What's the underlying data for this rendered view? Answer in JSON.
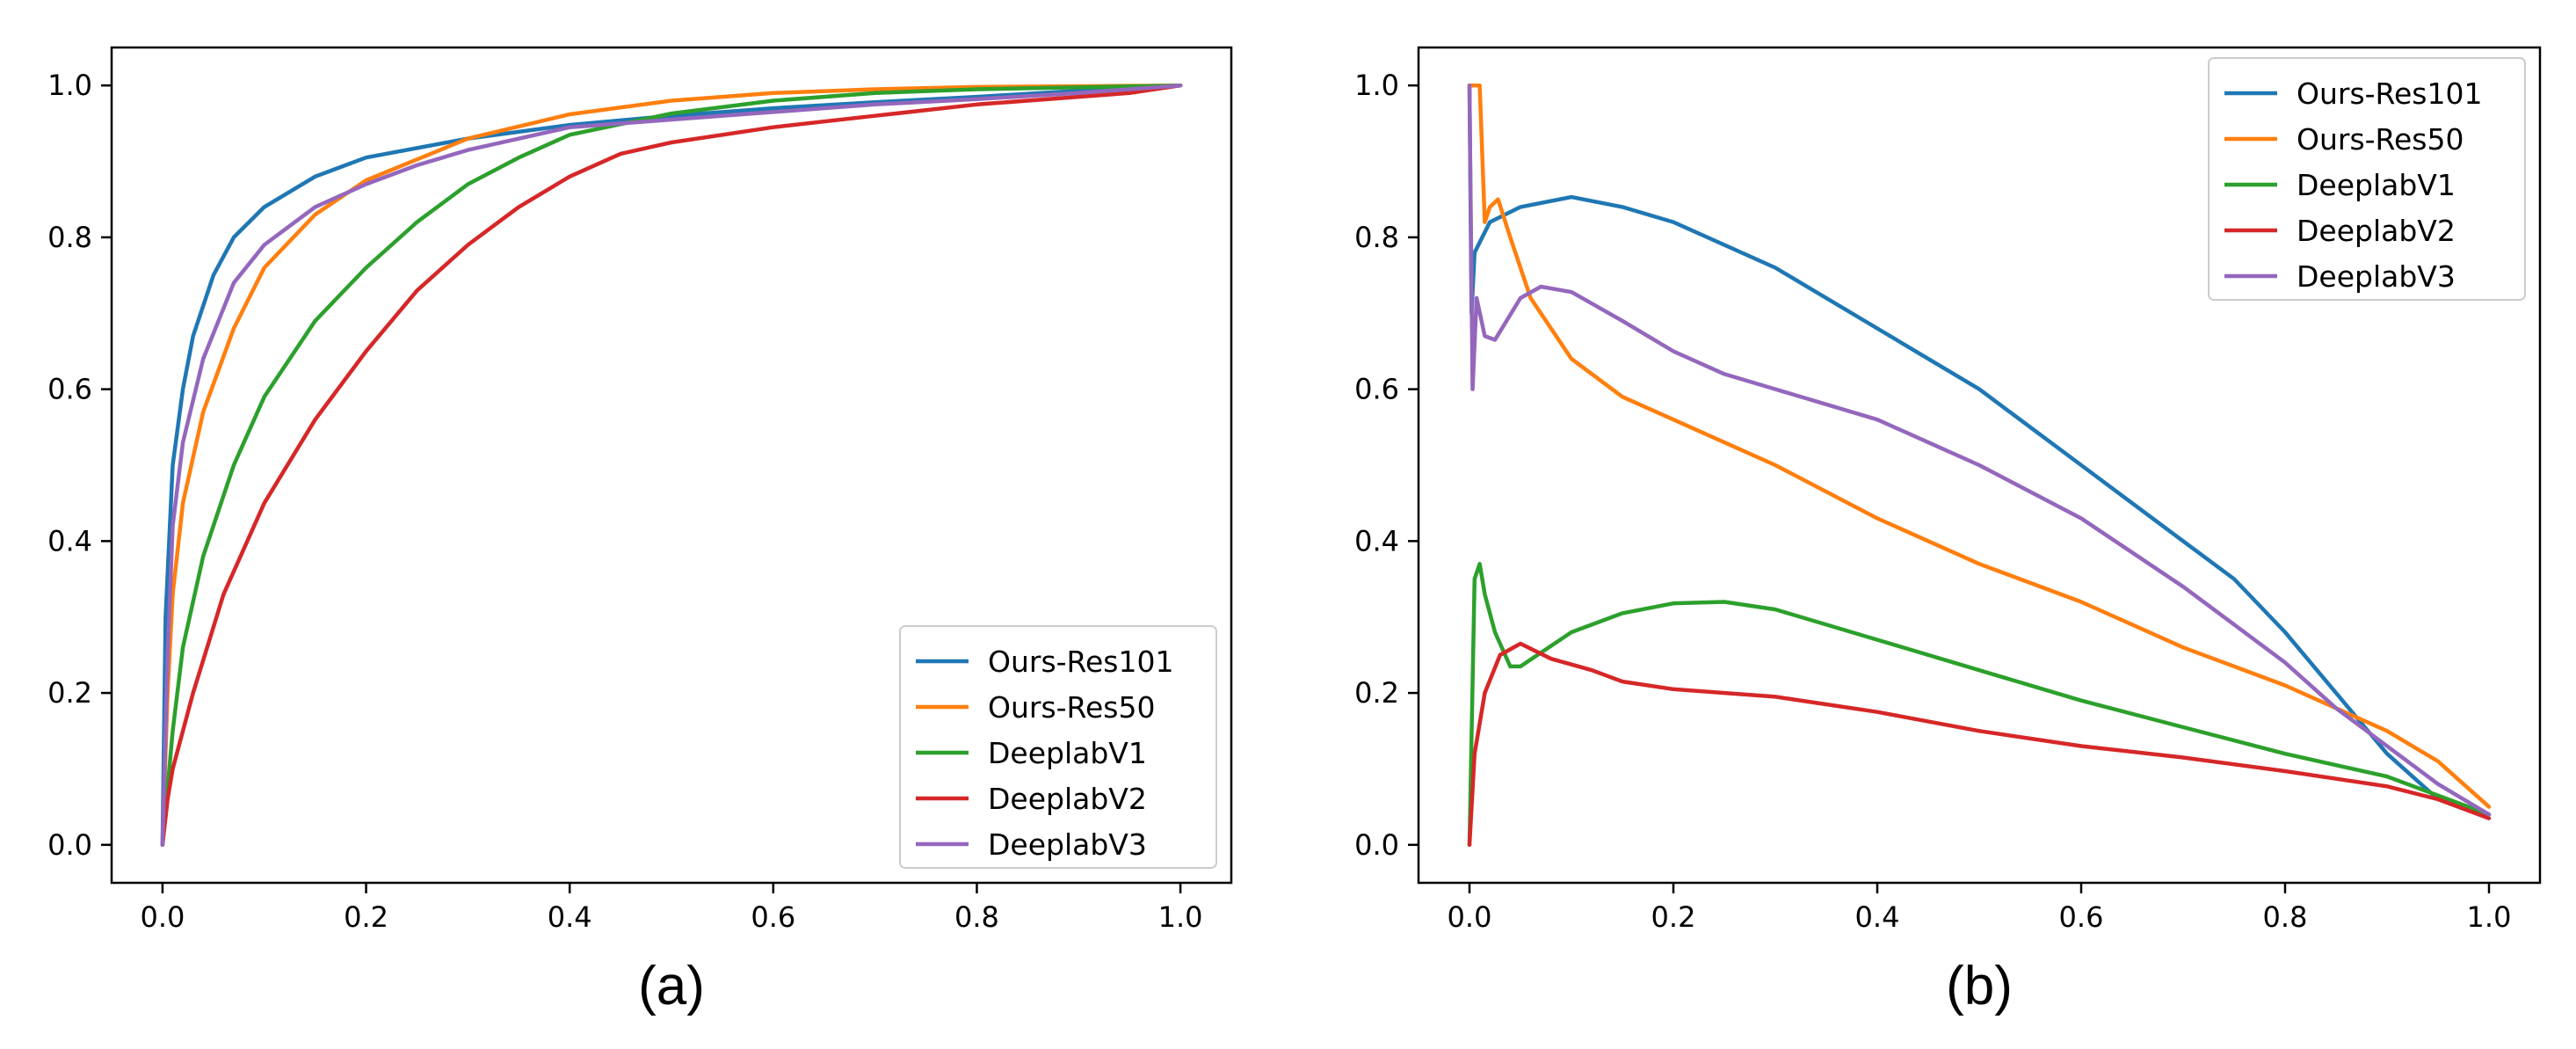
{
  "chart_data": [
    {
      "type": "line",
      "caption": "(a)",
      "xlim": [
        -0.05,
        1.05
      ],
      "ylim": [
        -0.05,
        1.05
      ],
      "xticks": [
        {
          "value": 0.0,
          "label": "0.0"
        },
        {
          "value": 0.2,
          "label": "0.2"
        },
        {
          "value": 0.4,
          "label": "0.4"
        },
        {
          "value": 0.6,
          "label": "0.6"
        },
        {
          "value": 0.8,
          "label": "0.8"
        },
        {
          "value": 1.0,
          "label": "1.0"
        }
      ],
      "yticks": [
        {
          "value": 0.0,
          "label": "0.0"
        },
        {
          "value": 0.2,
          "label": "0.2"
        },
        {
          "value": 0.4,
          "label": "0.4"
        },
        {
          "value": 0.6,
          "label": "0.6"
        },
        {
          "value": 0.8,
          "label": "0.8"
        },
        {
          "value": 1.0,
          "label": "1.0"
        }
      ],
      "grid": false,
      "legend_position": "lower-right",
      "series": [
        {
          "name": "Ours-Res101",
          "color": "#1f77b4",
          "points": [
            [
              0,
              0
            ],
            [
              0.003,
              0.3
            ],
            [
              0.01,
              0.5
            ],
            [
              0.02,
              0.6
            ],
            [
              0.03,
              0.67
            ],
            [
              0.05,
              0.75
            ],
            [
              0.07,
              0.8
            ],
            [
              0.1,
              0.84
            ],
            [
              0.15,
              0.88
            ],
            [
              0.2,
              0.905
            ],
            [
              0.3,
              0.93
            ],
            [
              0.4,
              0.948
            ],
            [
              0.5,
              0.96
            ],
            [
              0.6,
              0.97
            ],
            [
              0.7,
              0.978
            ],
            [
              0.8,
              0.985
            ],
            [
              0.9,
              0.993
            ],
            [
              1.0,
              1.0
            ]
          ]
        },
        {
          "name": "Ours-Res50",
          "color": "#ff7f0e",
          "points": [
            [
              0,
              0
            ],
            [
              0.005,
              0.2
            ],
            [
              0.01,
              0.33
            ],
            [
              0.02,
              0.45
            ],
            [
              0.04,
              0.57
            ],
            [
              0.07,
              0.68
            ],
            [
              0.1,
              0.76
            ],
            [
              0.15,
              0.83
            ],
            [
              0.2,
              0.875
            ],
            [
              0.3,
              0.93
            ],
            [
              0.4,
              0.962
            ],
            [
              0.5,
              0.98
            ],
            [
              0.6,
              0.99
            ],
            [
              0.7,
              0.995
            ],
            [
              0.8,
              0.998
            ],
            [
              1.0,
              1.0
            ]
          ]
        },
        {
          "name": "DeeplabV1",
          "color": "#2ca02c",
          "points": [
            [
              0,
              0
            ],
            [
              0.01,
              0.15
            ],
            [
              0.02,
              0.26
            ],
            [
              0.04,
              0.38
            ],
            [
              0.07,
              0.5
            ],
            [
              0.1,
              0.59
            ],
            [
              0.15,
              0.69
            ],
            [
              0.2,
              0.76
            ],
            [
              0.25,
              0.82
            ],
            [
              0.3,
              0.87
            ],
            [
              0.35,
              0.905
            ],
            [
              0.4,
              0.935
            ],
            [
              0.5,
              0.963
            ],
            [
              0.6,
              0.98
            ],
            [
              0.7,
              0.99
            ],
            [
              0.8,
              0.995
            ],
            [
              1.0,
              1.0
            ]
          ]
        },
        {
          "name": "DeeplabV2",
          "color": "#d62728",
          "points": [
            [
              0,
              0
            ],
            [
              0.005,
              0.06
            ],
            [
              0.01,
              0.1
            ],
            [
              0.03,
              0.2
            ],
            [
              0.06,
              0.33
            ],
            [
              0.1,
              0.45
            ],
            [
              0.15,
              0.56
            ],
            [
              0.2,
              0.65
            ],
            [
              0.25,
              0.73
            ],
            [
              0.3,
              0.79
            ],
            [
              0.35,
              0.84
            ],
            [
              0.4,
              0.88
            ],
            [
              0.45,
              0.91
            ],
            [
              0.5,
              0.925
            ],
            [
              0.6,
              0.945
            ],
            [
              0.7,
              0.96
            ],
            [
              0.8,
              0.975
            ],
            [
              0.9,
              0.985
            ],
            [
              0.95,
              0.99
            ],
            [
              1.0,
              1.0
            ]
          ]
        },
        {
          "name": "DeeplabV3",
          "color": "#9467bd",
          "points": [
            [
              0,
              0
            ],
            [
              0.005,
              0.25
            ],
            [
              0.01,
              0.42
            ],
            [
              0.02,
              0.53
            ],
            [
              0.04,
              0.64
            ],
            [
              0.07,
              0.74
            ],
            [
              0.1,
              0.79
            ],
            [
              0.15,
              0.84
            ],
            [
              0.2,
              0.87
            ],
            [
              0.25,
              0.895
            ],
            [
              0.3,
              0.915
            ],
            [
              0.4,
              0.945
            ],
            [
              0.5,
              0.955
            ],
            [
              0.6,
              0.965
            ],
            [
              0.7,
              0.975
            ],
            [
              0.8,
              0.982
            ],
            [
              0.9,
              0.99
            ],
            [
              1.0,
              1.0
            ]
          ]
        }
      ]
    },
    {
      "type": "line",
      "caption": "(b)",
      "xlim": [
        -0.05,
        1.05
      ],
      "ylim": [
        -0.05,
        1.05
      ],
      "xticks": [
        {
          "value": 0.0,
          "label": "0.0"
        },
        {
          "value": 0.2,
          "label": "0.2"
        },
        {
          "value": 0.4,
          "label": "0.4"
        },
        {
          "value": 0.6,
          "label": "0.6"
        },
        {
          "value": 0.8,
          "label": "0.8"
        },
        {
          "value": 1.0,
          "label": "1.0"
        }
      ],
      "yticks": [
        {
          "value": 0.0,
          "label": "0.0"
        },
        {
          "value": 0.2,
          "label": "0.2"
        },
        {
          "value": 0.4,
          "label": "0.4"
        },
        {
          "value": 0.6,
          "label": "0.6"
        },
        {
          "value": 0.8,
          "label": "0.8"
        },
        {
          "value": 1.0,
          "label": "1.0"
        }
      ],
      "grid": false,
      "legend_position": "upper-right",
      "series": [
        {
          "name": "Ours-Res101",
          "color": "#1f77b4",
          "points": [
            [
              0,
              1.0
            ],
            [
              0.002,
              0.7
            ],
            [
              0.005,
              0.78
            ],
            [
              0.02,
              0.82
            ],
            [
              0.05,
              0.84
            ],
            [
              0.1,
              0.853
            ],
            [
              0.15,
              0.84
            ],
            [
              0.2,
              0.82
            ],
            [
              0.3,
              0.76
            ],
            [
              0.4,
              0.68
            ],
            [
              0.5,
              0.6
            ],
            [
              0.6,
              0.5
            ],
            [
              0.7,
              0.4
            ],
            [
              0.75,
              0.35
            ],
            [
              0.8,
              0.28
            ],
            [
              0.85,
              0.2
            ],
            [
              0.9,
              0.12
            ],
            [
              0.95,
              0.06
            ],
            [
              1.0,
              0.04
            ]
          ]
        },
        {
          "name": "Ours-Res50",
          "color": "#ff7f0e",
          "points": [
            [
              0,
              1.0
            ],
            [
              0.01,
              1.0
            ],
            [
              0.015,
              0.82
            ],
            [
              0.02,
              0.84
            ],
            [
              0.028,
              0.85
            ],
            [
              0.04,
              0.8
            ],
            [
              0.06,
              0.72
            ],
            [
              0.1,
              0.64
            ],
            [
              0.15,
              0.59
            ],
            [
              0.2,
              0.56
            ],
            [
              0.3,
              0.5
            ],
            [
              0.4,
              0.43
            ],
            [
              0.5,
              0.37
            ],
            [
              0.6,
              0.32
            ],
            [
              0.7,
              0.26
            ],
            [
              0.8,
              0.21
            ],
            [
              0.9,
              0.15
            ],
            [
              0.95,
              0.11
            ],
            [
              1.0,
              0.05
            ]
          ]
        },
        {
          "name": "DeeplabV1",
          "color": "#2ca02c",
          "points": [
            [
              0,
              0
            ],
            [
              0.005,
              0.35
            ],
            [
              0.01,
              0.37
            ],
            [
              0.015,
              0.33
            ],
            [
              0.025,
              0.28
            ],
            [
              0.04,
              0.235
            ],
            [
              0.05,
              0.235
            ],
            [
              0.1,
              0.28
            ],
            [
              0.15,
              0.305
            ],
            [
              0.2,
              0.318
            ],
            [
              0.25,
              0.32
            ],
            [
              0.3,
              0.31
            ],
            [
              0.4,
              0.27
            ],
            [
              0.5,
              0.23
            ],
            [
              0.6,
              0.19
            ],
            [
              0.7,
              0.155
            ],
            [
              0.8,
              0.12
            ],
            [
              0.9,
              0.09
            ],
            [
              1.0,
              0.04
            ]
          ]
        },
        {
          "name": "DeeplabV2",
          "color": "#d62728",
          "points": [
            [
              0,
              0
            ],
            [
              0.005,
              0.12
            ],
            [
              0.015,
              0.2
            ],
            [
              0.03,
              0.25
            ],
            [
              0.05,
              0.265
            ],
            [
              0.08,
              0.245
            ],
            [
              0.12,
              0.23
            ],
            [
              0.15,
              0.215
            ],
            [
              0.2,
              0.205
            ],
            [
              0.3,
              0.195
            ],
            [
              0.4,
              0.175
            ],
            [
              0.5,
              0.15
            ],
            [
              0.6,
              0.13
            ],
            [
              0.7,
              0.115
            ],
            [
              0.8,
              0.097
            ],
            [
              0.9,
              0.077
            ],
            [
              0.95,
              0.06
            ],
            [
              1.0,
              0.035
            ]
          ]
        },
        {
          "name": "DeeplabV3",
          "color": "#9467bd",
          "points": [
            [
              0,
              1.0
            ],
            [
              0.003,
              0.6
            ],
            [
              0.007,
              0.72
            ],
            [
              0.015,
              0.67
            ],
            [
              0.025,
              0.665
            ],
            [
              0.05,
              0.72
            ],
            [
              0.07,
              0.735
            ],
            [
              0.1,
              0.728
            ],
            [
              0.15,
              0.69
            ],
            [
              0.2,
              0.65
            ],
            [
              0.25,
              0.62
            ],
            [
              0.3,
              0.6
            ],
            [
              0.4,
              0.56
            ],
            [
              0.5,
              0.5
            ],
            [
              0.6,
              0.43
            ],
            [
              0.7,
              0.34
            ],
            [
              0.8,
              0.24
            ],
            [
              0.85,
              0.18
            ],
            [
              0.9,
              0.13
            ],
            [
              0.95,
              0.08
            ],
            [
              1.0,
              0.04
            ]
          ]
        }
      ]
    }
  ]
}
